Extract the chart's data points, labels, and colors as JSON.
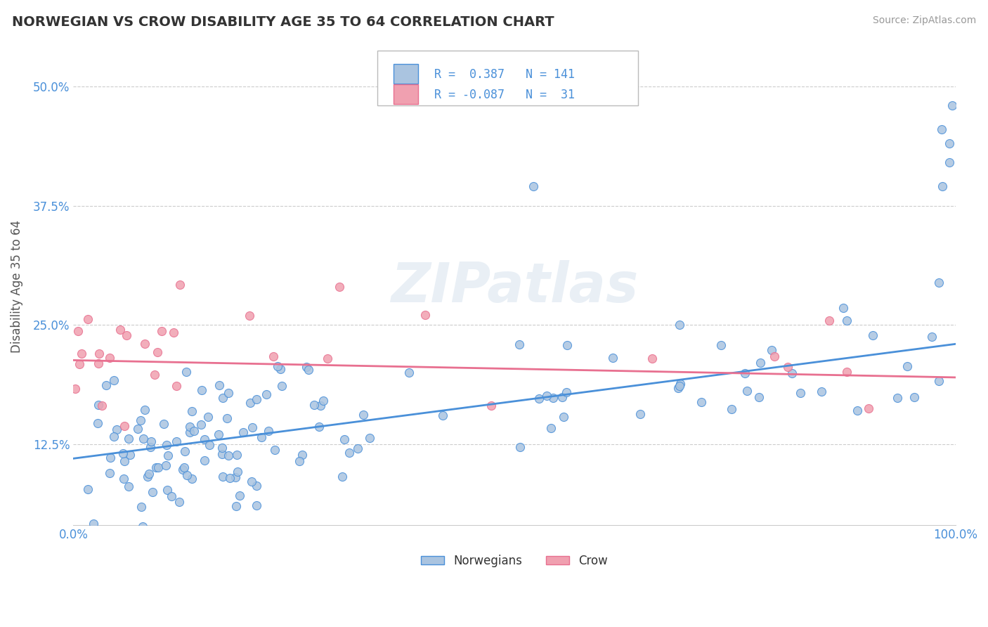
{
  "title": "NORWEGIAN VS CROW DISABILITY AGE 35 TO 64 CORRELATION CHART",
  "source_text": "Source: ZipAtlas.com",
  "ylabel": "Disability Age 35 to 64",
  "xlim": [
    0.0,
    1.0
  ],
  "ylim": [
    0.04,
    0.54
  ],
  "yticks": [
    0.125,
    0.25,
    0.375,
    0.5
  ],
  "ytick_labels": [
    "12.5%",
    "25.0%",
    "37.5%",
    "50.0%"
  ],
  "xticks": [
    0.0,
    0.1,
    0.2,
    0.3,
    0.4,
    0.5,
    0.6,
    0.7,
    0.8,
    0.9,
    1.0
  ],
  "background_color": "#ffffff",
  "grid_color": "#cccccc",
  "norwegians_color": "#aac4e0",
  "crow_color": "#f0a0b0",
  "norwegians_line_color": "#4a90d9",
  "crow_line_color": "#e87090",
  "legend_R1": "0.387",
  "legend_N1": "141",
  "legend_R2": "-0.087",
  "legend_N2": "31",
  "watermark": "ZIPatlas",
  "norwegians_line_x": [
    0.0,
    1.0
  ],
  "norwegians_line_y": [
    0.11,
    0.23
  ],
  "crow_line_x": [
    0.0,
    1.0
  ],
  "crow_line_y": [
    0.213,
    0.195
  ]
}
